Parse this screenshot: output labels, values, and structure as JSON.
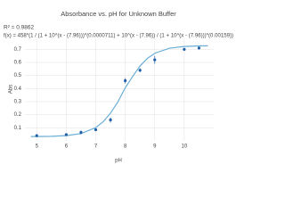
{
  "chart_data": {
    "type": "scatter",
    "title": "Absorbance vs. pH for Unknown Buffer",
    "annotations": [
      "R² = 0.9862",
      "f(x) = 458*(1 / (1 + 10^(x - (7.96)))*(0.0000711) + 10^(x - (7.96)) / (1 + 10^(x - (7.96)))*(0.00159))"
    ],
    "x_label": "pH",
    "y_label": "Abs",
    "xlim": [
      4.6,
      11
    ],
    "ylim": [
      0,
      0.75
    ],
    "xticks": [
      5,
      6,
      7,
      8,
      9,
      10
    ],
    "yticks": [
      0.1,
      0.2,
      0.3,
      0.4,
      0.5,
      0.6,
      0.7
    ],
    "grid": true,
    "points": {
      "color": "#1f5fa8",
      "x": [
        5,
        6,
        6.5,
        7,
        7.5,
        8,
        8.5,
        9,
        10,
        10.5
      ],
      "values": [
        0.04,
        0.048,
        0.065,
        0.085,
        0.16,
        0.46,
        0.54,
        0.62,
        0.7,
        0.71
      ],
      "error": [
        0.005,
        0.008,
        0.015,
        0.01,
        0.02,
        0.02,
        0.015,
        0.03,
        0.01,
        0.008
      ]
    },
    "fit": {
      "color": "#6aaed6",
      "x": [
        4.8,
        5,
        5.5,
        6,
        6.5,
        7,
        7.25,
        7.5,
        7.75,
        8,
        8.25,
        8.5,
        8.75,
        9,
        9.5,
        10,
        10.5,
        10.8
      ],
      "values": [
        0.0331,
        0.0334,
        0.035,
        0.0401,
        0.0559,
        0.1013,
        0.146,
        0.2117,
        0.2979,
        0.4064,
        0.4924,
        0.5724,
        0.631,
        0.67,
        0.7087,
        0.722,
        0.7262,
        0.7272
      ]
    }
  }
}
